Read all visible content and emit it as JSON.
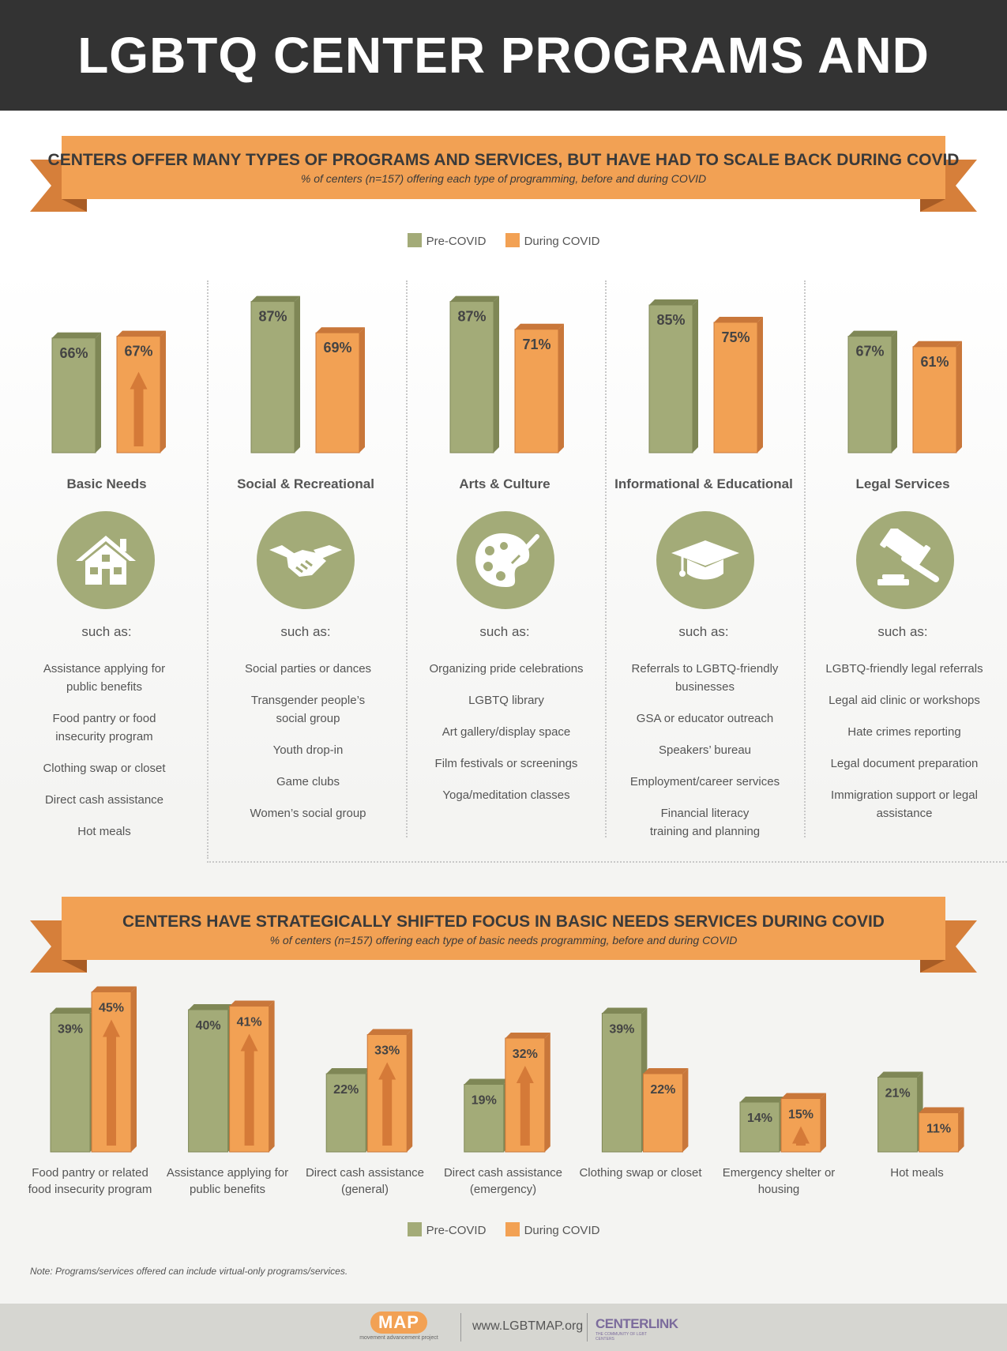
{
  "title": "LGBTQ CENTER PROGRAMS AND SERVICES",
  "colors": {
    "pre": "#a3ab78",
    "pre_dark": "#7f8756",
    "during": "#f2a154",
    "during_dark": "#c9773a",
    "banner": "#f2a154",
    "banner_dark": "#d67f3a",
    "arrow": "#d57a38"
  },
  "legend": {
    "pre": "Pre-COVID",
    "during": "During COVID"
  },
  "section1": {
    "heading": "CENTERS OFFER MANY TYPES OF PROGRAMS AND SERVICES, BUT HAVE HAD TO SCALE BACK DURING COVID",
    "subheading": "% of centers (n=157) offering each type of programming, before and during COVID",
    "such_as": "such as:",
    "categories": [
      {
        "name": "Basic Needs",
        "icon": "house-icon",
        "examples": [
          "Assistance applying for public benefits",
          "Food pantry or food insecurity program",
          "Clothing swap or closet",
          "Direct cash assistance",
          "Hot meals"
        ]
      },
      {
        "name": "Social & Recreational",
        "icon": "handshake-icon",
        "examples": [
          "Social parties or dances",
          "Transgender people’s social group",
          "Youth drop-in",
          "Game clubs",
          "Women’s social group"
        ]
      },
      {
        "name": "Arts & Culture",
        "icon": "palette-icon",
        "examples": [
          "Organizing pride celebrations",
          "LGBTQ library",
          "Art gallery/display space",
          "Film festivals or screenings",
          "Yoga/meditation classes"
        ]
      },
      {
        "name": "Informational & Educational",
        "icon": "graduation-cap-icon",
        "examples": [
          "Referrals to LGBTQ-friendly businesses",
          "GSA or educator outreach",
          "Speakers’ bureau",
          "Employment/career services",
          "Financial literacy training and planning"
        ]
      },
      {
        "name": "Legal Services",
        "icon": "gavel-icon",
        "examples": [
          "LGBTQ-friendly legal referrals",
          "Legal aid clinic or workshops",
          "Hate crimes reporting",
          "Legal document preparation",
          "Immigration support or legal assistance"
        ]
      }
    ]
  },
  "section2": {
    "heading": "CENTERS HAVE STRATEGICALLY SHIFTED FOCUS IN BASIC NEEDS SERVICES DURING COVID",
    "subheading": "% of centers (n=157) offering each type of basic needs programming, before and during COVID"
  },
  "chart_data": [
    {
      "type": "bar",
      "categories": [
        "Basic Needs",
        "Social & Recreational",
        "Arts & Culture",
        "Informational & Educational",
        "Legal Services"
      ],
      "series": [
        {
          "name": "Pre-COVID",
          "values": [
            66,
            87,
            87,
            85,
            67
          ]
        },
        {
          "name": "During COVID",
          "values": [
            67,
            69,
            71,
            75,
            61
          ]
        }
      ],
      "labels": [
        [
          "66%",
          "67%"
        ],
        [
          "87%",
          "69%"
        ],
        [
          "87%",
          "71%"
        ],
        [
          "85%",
          "75%"
        ],
        [
          "67%",
          "61%"
        ]
      ],
      "increase_arrows": [
        true,
        false,
        false,
        false,
        false
      ],
      "legend_position": "top"
    },
    {
      "type": "bar",
      "categories": [
        "Food pantry or related food insecurity program",
        "Assistance applying for public benefits",
        "Direct cash assistance (general)",
        "Direct cash assistance (emergency)",
        "Clothing swap or closet",
        "Emergency shelter or housing",
        "Hot meals"
      ],
      "category_lines": [
        [
          "Food pantry or related",
          "food insecurity program"
        ],
        [
          "Assistance applying for",
          "public benefits"
        ],
        [
          "Direct cash assistance",
          "(general)"
        ],
        [
          "Direct cash assistance",
          "(emergency)"
        ],
        [
          "Clothing swap or closet"
        ],
        [
          "Emergency shelter or",
          "housing"
        ],
        [
          "Hot meals"
        ]
      ],
      "series": [
        {
          "name": "Pre-COVID",
          "values": [
            39,
            40,
            22,
            19,
            39,
            14,
            21
          ]
        },
        {
          "name": "During COVID",
          "values": [
            45,
            41,
            33,
            32,
            22,
            15,
            11
          ]
        }
      ],
      "labels": [
        [
          "39%",
          "45%"
        ],
        [
          "40%",
          "41%"
        ],
        [
          "22%",
          "33%"
        ],
        [
          "19%",
          "32%"
        ],
        [
          "39%",
          "22%"
        ],
        [
          "14%",
          "15%"
        ],
        [
          "21%",
          "11%"
        ]
      ],
      "increase_arrows": [
        true,
        true,
        true,
        true,
        false,
        true,
        false
      ],
      "legend_position": "bottom"
    }
  ],
  "note": "Note: Programs/services offered can include virtual-only programs/services.",
  "footer": {
    "map_logo": "MAP",
    "map_tagline": "movement advancement project",
    "url": "www.LGBTMAP.org",
    "centerlink_logo": "CENTERLINK",
    "centerlink_tagline": "THE COMMUNITY OF LGBT CENTERS"
  }
}
